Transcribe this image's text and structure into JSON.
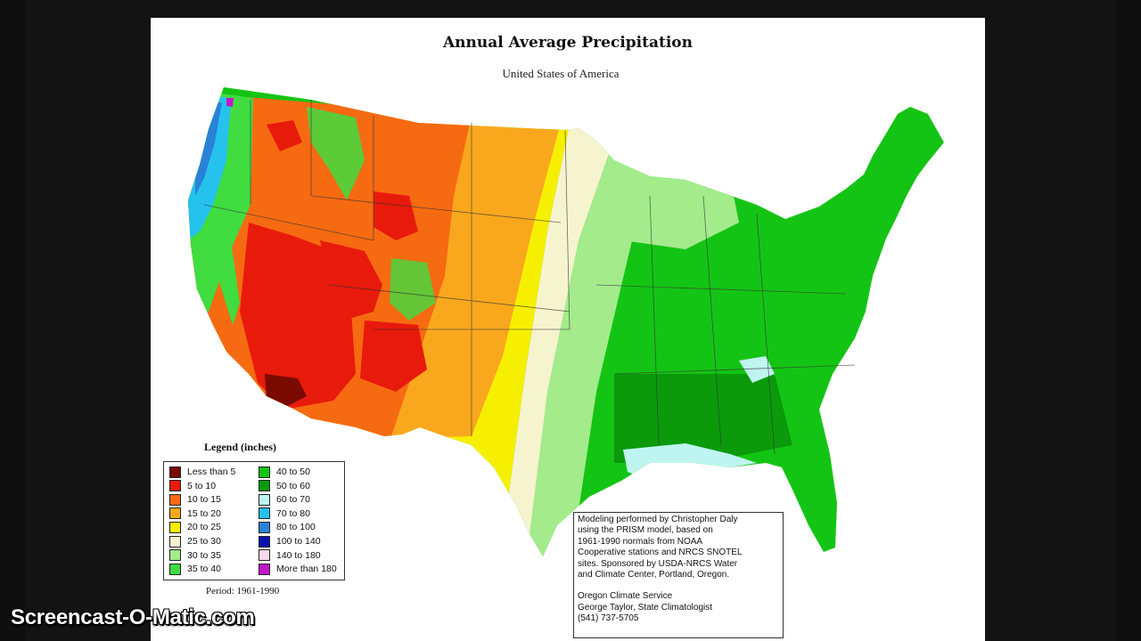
{
  "map": {
    "title": "Annual Average Precipitation",
    "subtitle": "United States of America"
  },
  "legend": {
    "title": "Legend (inches)",
    "items": [
      {
        "label": "Less than 5",
        "color": "#7a0a00"
      },
      {
        "label": "5 to 10",
        "color": "#e81a0c"
      },
      {
        "label": "10 to 15",
        "color": "#f66a12"
      },
      {
        "label": "15 to 20",
        "color": "#f9a81d"
      },
      {
        "label": "20 to 25",
        "color": "#f6f000"
      },
      {
        "label": "25 to 30",
        "color": "#f6f3cf"
      },
      {
        "label": "30 to 35",
        "color": "#a3eb8b"
      },
      {
        "label": "35 to 40",
        "color": "#40dc40"
      },
      {
        "label": "40 to 50",
        "color": "#12c512"
      },
      {
        "label": "50 to 60",
        "color": "#0a9a0a"
      },
      {
        "label": "60 to 70",
        "color": "#bff5f0"
      },
      {
        "label": "70 to 80",
        "color": "#25c2ee"
      },
      {
        "label": "80 to 100",
        "color": "#2a82d8"
      },
      {
        "label": "100 to 140",
        "color": "#0a13b0"
      },
      {
        "label": "140 to 180",
        "color": "#f7d8e8"
      },
      {
        "label": "More than 180",
        "color": "#c316c8"
      }
    ]
  },
  "period": "Period: 1961-1990",
  "credits": {
    "lines": [
      "Modeling performed by Christopher Daly",
      "using the PRISM model, based on",
      "1961-1990 normals from NOAA",
      "Cooperative stations and NRCS SNOTEL",
      "sites.  Sponsored by USDA-NRCS Water",
      "and Climate Center, Portland, Oregon."
    ],
    "org_lines": [
      "Oregon Climate Service",
      "George Taylor, State Climatologist",
      "(541) 737-5705"
    ]
  },
  "watermark": "Screencast-O-Matic.com"
}
